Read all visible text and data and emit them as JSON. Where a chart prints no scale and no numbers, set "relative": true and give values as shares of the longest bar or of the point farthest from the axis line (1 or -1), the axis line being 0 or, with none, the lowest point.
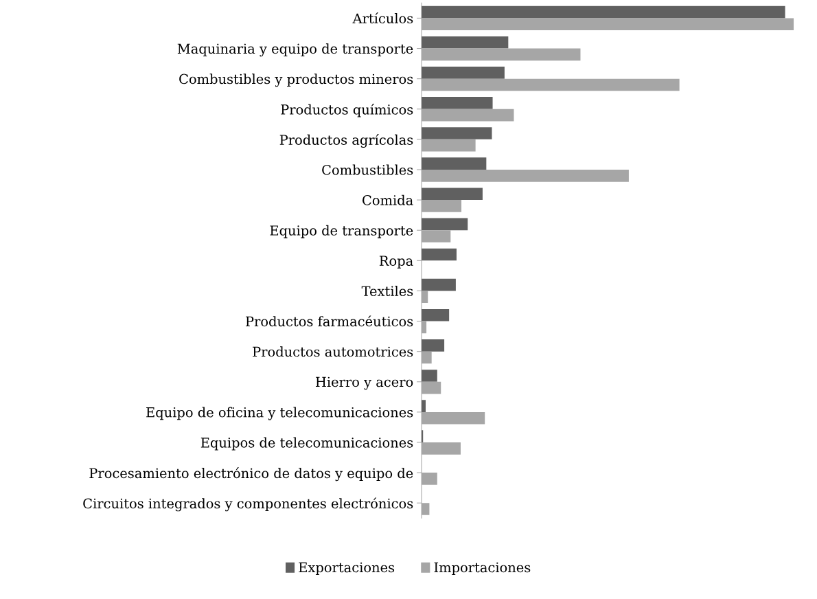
{
  "chart_data": {
    "type": "bar",
    "orientation": "horizontal",
    "relative": true,
    "categories": [
      "Artículos",
      "Maquinaria y equipo de transporte",
      "Combustibles y productos mineros",
      "Productos químicos",
      "Productos agrícolas",
      "Combustibles",
      "Comida",
      "Equipo de transporte",
      "Ropa",
      "Textiles",
      "Productos farmacéuticos",
      "Productos automotrices",
      "Hierro y acero",
      "Equipo de oficina y telecomunicaciones",
      "Equipos de telecomunicaciones",
      "Procesamiento electrónico de datos y equipo de",
      "Circuitos integrados y componentes electrónicos"
    ],
    "series": [
      {
        "name": "Exportaciones",
        "color": "#606060",
        "values": [
          0.977,
          0.233,
          0.223,
          0.191,
          0.189,
          0.174,
          0.164,
          0.124,
          0.094,
          0.092,
          0.074,
          0.061,
          0.042,
          0.011,
          0.004,
          0,
          0
        ]
      },
      {
        "name": "Importaciones",
        "color": "#a6a6a6",
        "values": [
          1.0,
          0.427,
          0.693,
          0.248,
          0.145,
          0.557,
          0.107,
          0.078,
          0,
          0.017,
          0.013,
          0.027,
          0.052,
          0.17,
          0.105,
          0.042,
          0.021
        ]
      }
    ],
    "legend": "bottom",
    "grid": false
  }
}
